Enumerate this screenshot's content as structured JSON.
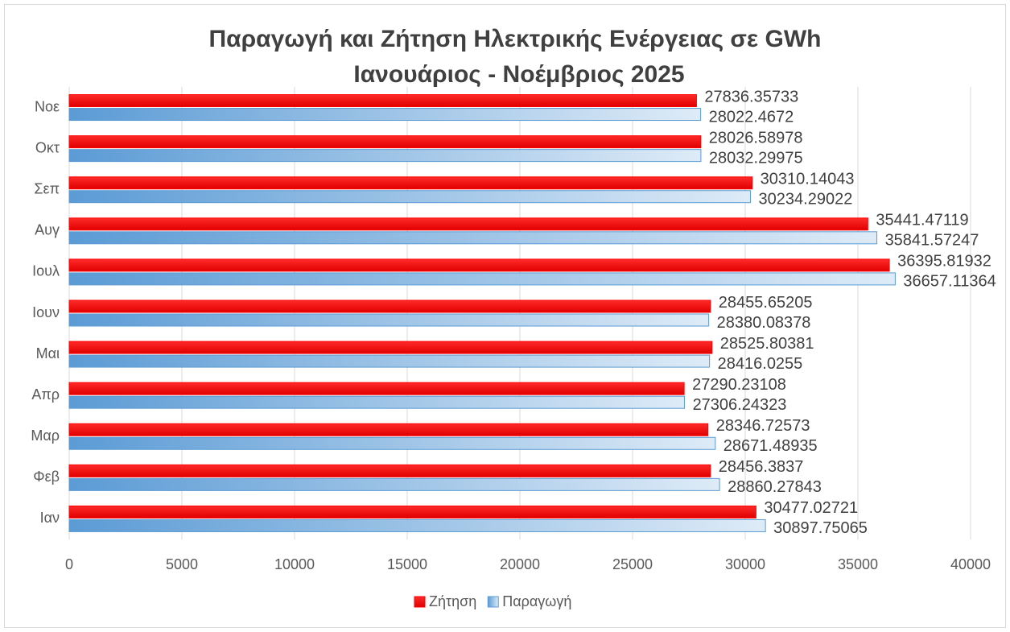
{
  "chart_data": {
    "type": "hbar",
    "title": "Παραγωγή και Ζήτηση Ηλεκτρικής Ενέργειας σε GWh",
    "subtitle": "Ιανουάριος - Νοέμβριος 2025",
    "categories": [
      "Ιαν",
      "Φεβ",
      "Μαρ",
      "Απρ",
      "Μαι",
      "Ιουν",
      "Ιουλ",
      "Αυγ",
      "Σεπ",
      "Οκτ",
      "Νοε"
    ],
    "series": [
      {
        "name": "Ζήτηση",
        "color": "#ff0000",
        "values": [
          30477.02721,
          28456.3837,
          28346.72573,
          27290.23108,
          28525.80381,
          28455.65205,
          36395.81932,
          35441.47119,
          30310.14043,
          28026.58978,
          27836.35733
        ]
      },
      {
        "name": "Παραγωγή",
        "color": "#5b9bd5",
        "values": [
          30897.75065,
          28860.27843,
          28671.48935,
          27306.24323,
          28416.0255,
          28380.08378,
          36657.11364,
          35841.57247,
          30234.29022,
          28032.29975,
          28022.4672
        ]
      }
    ],
    "xlim": [
      0,
      40000
    ],
    "xticks": [
      0,
      5000,
      10000,
      15000,
      20000,
      25000,
      30000,
      35000,
      40000
    ],
    "grid": true,
    "legend": "bottom"
  }
}
